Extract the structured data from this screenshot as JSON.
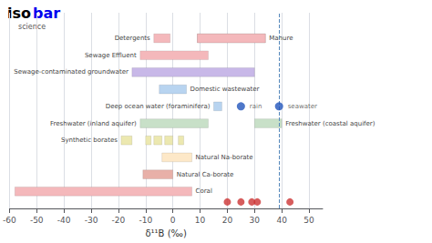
{
  "chart_data": {
    "type": "bar",
    "orientation": "horizontal",
    "xlabel": "δ¹¹B (‰)",
    "xlim": [
      -60,
      55
    ],
    "xticks": [
      -60,
      -50,
      -40,
      -30,
      -20,
      -10,
      0,
      10,
      20,
      30,
      40,
      50
    ],
    "ylim": [
      0,
      11.5
    ],
    "tick_labels": "x",
    "grid": true,
    "series": [
      {
        "name": "Detergents",
        "label_side": "left",
        "y": 10,
        "color": "#f4b8bb",
        "values": [
          [
            -7,
            -1
          ],
          [
            9,
            34
          ]
        ]
      },
      {
        "name": "Manure",
        "label_side": "right",
        "y": 10,
        "color": "#f4b8bb",
        "values": [
          [
            9,
            34
          ]
        ]
      },
      {
        "name": "Sewage Effluent",
        "label_side": "left",
        "y": 9,
        "color": "#f4b8bb",
        "values": [
          [
            -12,
            13
          ]
        ]
      },
      {
        "name": "Sewage-contaminated groundwater",
        "label_side": "left",
        "y": 8,
        "color": "#c8b8e8",
        "values": [
          [
            -15,
            30
          ]
        ]
      },
      {
        "name": "Domestic wastewater",
        "label_side": "right",
        "y": 7,
        "color": "#b8d4f0",
        "values": [
          [
            -5,
            5
          ]
        ]
      },
      {
        "name": "Deep ocean water (foraminifera)",
        "label_side": "left",
        "y": 6,
        "color": "#b8d4f0",
        "values": [
          [
            15,
            18
          ]
        ]
      },
      {
        "name": "Freshwater (inland aquifer)",
        "label_side": "left",
        "y": 5,
        "color": "#c8e0c8",
        "values": [
          [
            -12,
            13
          ]
        ]
      },
      {
        "name": "Freshwater (coastal aquifer)",
        "label_side": "right",
        "y": 5,
        "color": "#c8e0c8",
        "values": [
          [
            30,
            40
          ]
        ]
      },
      {
        "name": "Synthetic borates",
        "label_side": "left",
        "y": 4,
        "color": "#ece8b0",
        "values": [
          [
            -19,
            -15
          ],
          [
            -10,
            -8
          ],
          [
            -7,
            -4
          ],
          [
            -3,
            0
          ],
          [
            2,
            4
          ]
        ]
      },
      {
        "name": "Natural Na-borate",
        "label_side": "right",
        "y": 3,
        "color": "#fde8c8",
        "values": [
          [
            -4,
            7
          ]
        ]
      },
      {
        "name": "Natural Ca-borate",
        "label_side": "right",
        "y": 2,
        "color": "#e8b0a8",
        "values": [
          [
            -11,
            0
          ]
        ]
      },
      {
        "name": "Coral",
        "label_side": "right",
        "y": 1,
        "color": "#f4b8bb",
        "values": [
          [
            -58,
            7
          ]
        ]
      },
      {
        "name": "rain",
        "type": "scatter",
        "color": "#2255bb",
        "values": [
          [
            25,
            6
          ]
        ]
      },
      {
        "name": "seawater",
        "type": "scatter",
        "color": "#2255bb",
        "values": [
          [
            39,
            6
          ]
        ]
      },
      {
        "type": "scatter",
        "color": "#cc3333",
        "values": [
          [
            20,
            0.38
          ],
          [
            25,
            0.38
          ],
          [
            29,
            0.38
          ],
          [
            31,
            0.38
          ],
          [
            43,
            0.38
          ]
        ]
      }
    ],
    "vlines": [
      {
        "x": 39,
        "color": "#5588bb",
        "line_style": "dashed"
      }
    ],
    "annotations": [
      {
        "text": "iso",
        "color": "#000000"
      },
      {
        "text": "bar",
        "color": "#0000ee"
      },
      {
        "text": "science",
        "color": "#555555"
      }
    ]
  }
}
